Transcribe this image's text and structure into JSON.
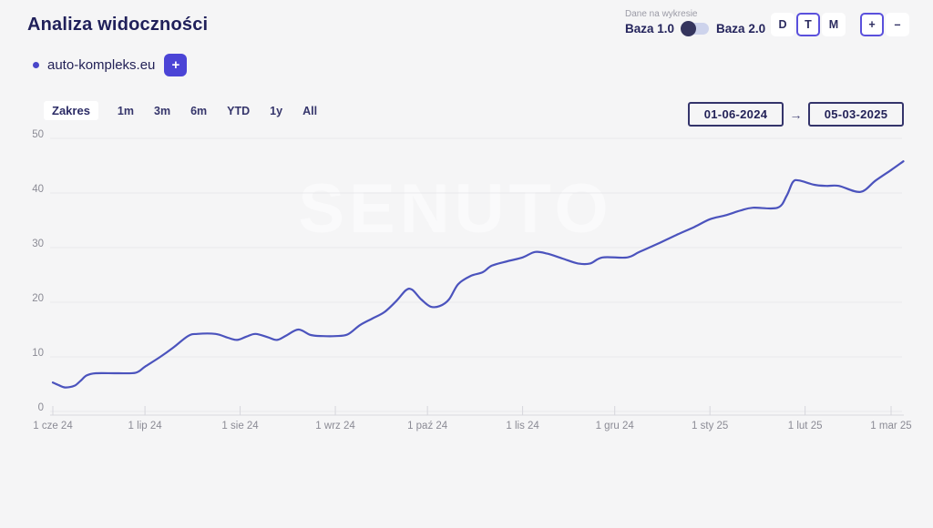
{
  "header": {
    "title": "Analiza widoczności"
  },
  "baza_switch": {
    "label": "Dane na wykresie",
    "left": "Baza 1.0",
    "right": "Baza 2.0"
  },
  "granularity": {
    "options": [
      "D",
      "T",
      "M"
    ],
    "selected": "T"
  },
  "zoom": {
    "in": "+",
    "out": "–"
  },
  "legend": {
    "domain": "auto-kompleks.eu",
    "add_label": "+"
  },
  "range_bar": {
    "label": "Zakres",
    "options": [
      "1m",
      "3m",
      "6m",
      "YTD",
      "1y",
      "All"
    ]
  },
  "date_range": {
    "from": "01-06-2024",
    "arrow": "→",
    "to": "05-03-2025"
  },
  "watermark": "SENUTO",
  "colors": {
    "accent": "#4b44d6",
    "selected_border": "#5a50dc",
    "line": "#4b53bd",
    "grid": "#e9e9ec",
    "axis_line": "#dfdfe4",
    "tick": "#d6d6dc",
    "axis_text": "#8b8b95",
    "navy_text": "#232258",
    "background": "#f5f5f6"
  },
  "chart_data": {
    "type": "line",
    "title": "Analiza widoczności",
    "series_name": "auto-kompleks.eu",
    "x_unit": "days since 2024-06-01",
    "x": [
      0,
      2,
      4,
      7,
      9,
      11,
      14,
      21,
      27,
      30,
      35,
      39,
      44,
      47,
      53,
      57,
      60,
      63,
      66,
      70,
      73,
      76,
      80,
      84,
      88,
      92,
      96,
      100,
      104,
      108,
      112,
      115,
      117,
      120,
      123,
      126,
      129,
      132,
      136,
      140,
      143,
      148,
      153,
      157,
      161,
      166,
      171,
      175,
      179,
      187,
      191,
      197,
      203,
      209,
      214,
      219,
      224,
      228,
      236,
      239,
      241,
      243,
      248,
      252,
      256,
      263,
      268,
      273,
      277
    ],
    "values": [
      5.3,
      4.8,
      4.4,
      4.7,
      5.6,
      6.6,
      7.0,
      7.0,
      7.1,
      8.2,
      10.0,
      11.6,
      13.8,
      14.2,
      14.2,
      13.5,
      13.1,
      13.7,
      14.2,
      13.6,
      13.1,
      13.9,
      15.0,
      14.0,
      13.8,
      13.8,
      14.1,
      15.8,
      17.0,
      18.2,
      20.3,
      22.2,
      22.3,
      20.5,
      19.2,
      19.3,
      20.5,
      23.3,
      24.8,
      25.5,
      26.7,
      27.5,
      28.2,
      29.2,
      28.9,
      28.0,
      27.1,
      27.1,
      28.2,
      28.2,
      29.2,
      30.7,
      32.3,
      33.8,
      35.2,
      35.9,
      36.8,
      37.3,
      37.3,
      39.5,
      42.0,
      42.3,
      41.5,
      41.3,
      41.3,
      40.2,
      42.3,
      44.2,
      45.8
    ],
    "xlim": [
      0,
      277
    ],
    "ylim": [
      0,
      50
    ],
    "yticks": [
      0,
      10,
      20,
      30,
      40,
      50
    ],
    "xticks": [
      {
        "day": 0,
        "label": "1 cze 24"
      },
      {
        "day": 30,
        "label": "1 lip 24"
      },
      {
        "day": 61,
        "label": "1 sie 24"
      },
      {
        "day": 92,
        "label": "1 wrz 24"
      },
      {
        "day": 122,
        "label": "1 paź 24"
      },
      {
        "day": 153,
        "label": "1 lis 24"
      },
      {
        "day": 183,
        "label": "1 gru 24"
      },
      {
        "day": 214,
        "label": "1 sty 25"
      },
      {
        "day": 245,
        "label": "1 lut 25"
      },
      {
        "day": 273,
        "label": "1 mar 25"
      }
    ],
    "grid": true,
    "legend_position": "top-left"
  }
}
